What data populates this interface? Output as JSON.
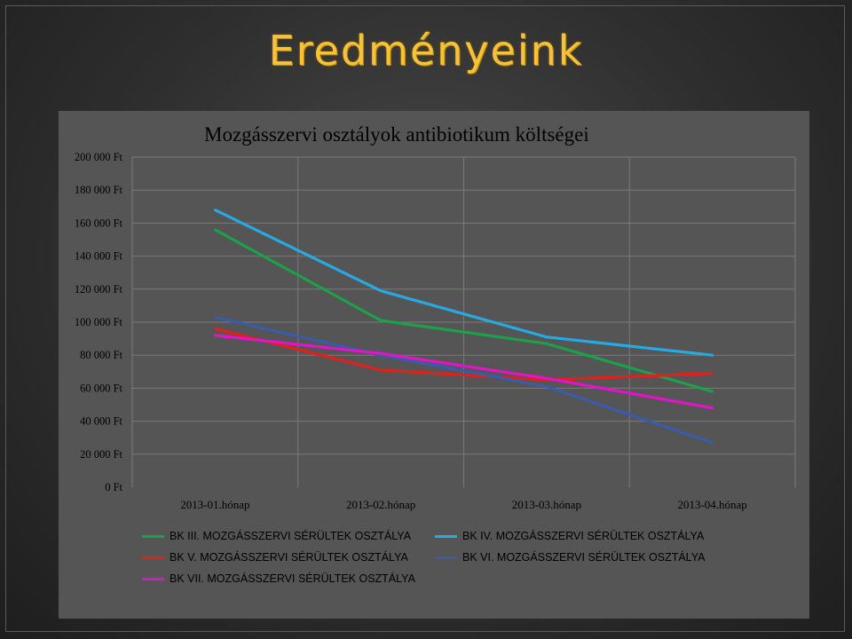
{
  "slide": {
    "title": "Eredményeink"
  },
  "chart_data": {
    "type": "line",
    "title": "Mozgásszervi osztályok antibiotikum költségei",
    "categories": [
      "2013-01.hónap",
      "2013-02.hónap",
      "2013-03.hónap",
      "2013-04.hónap"
    ],
    "y_tick_labels": [
      "0 Ft",
      "20 000 Ft",
      "40 000 Ft",
      "60 000 Ft",
      "80 000 Ft",
      "100 000 Ft",
      "120 000 Ft",
      "140 000 Ft",
      "160 000 Ft",
      "180 000 Ft",
      "200 000 Ft"
    ],
    "ylim": [
      0,
      200000
    ],
    "y_step": 20000,
    "grid": true,
    "legend_position": "bottom",
    "series": [
      {
        "name": "BK III. MOZGÁSSZERVI SÉRÜLTEK OSZTÁLYA",
        "color": "#1aa14a",
        "values": [
          156000,
          101000,
          87000,
          58000
        ]
      },
      {
        "name": "BK IV. MOZGÁSSZERVI SÉRÜLTEK OSZTÁLYA",
        "color": "#27a9e1",
        "values": [
          168000,
          119000,
          91000,
          80000
        ]
      },
      {
        "name": "BK V. MOZGÁSSZERVI SÉRÜLTEK OSZTÁLYA",
        "color": "#e0201b",
        "values": [
          96000,
          71000,
          65000,
          69000
        ]
      },
      {
        "name": "BK VI. MOZGÁSSZERVI SÉRÜLTEK OSZTÁLYA",
        "color": "#3a5ba8",
        "values": [
          103000,
          80000,
          61000,
          27000
        ]
      },
      {
        "name": "BK VII. MOZGÁSSZERVI SÉRÜLTEK OSZTÁLYA",
        "color": "#e313c8",
        "values": [
          92000,
          81000,
          66000,
          48000
        ]
      }
    ]
  }
}
